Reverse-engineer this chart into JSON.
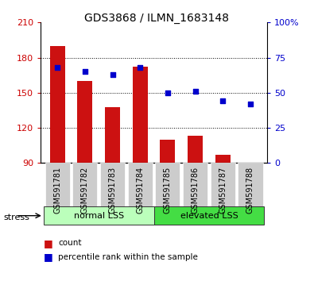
{
  "title": "GDS3868 / ILMN_1683148",
  "samples": [
    "GSM591781",
    "GSM591782",
    "GSM591783",
    "GSM591784",
    "GSM591785",
    "GSM591786",
    "GSM591787",
    "GSM591788"
  ],
  "bar_values": [
    190,
    160,
    138,
    172,
    110,
    113,
    97,
    90
  ],
  "bar_bottom": 90,
  "percentile_values": [
    68,
    65,
    63,
    68,
    50,
    51,
    44,
    42
  ],
  "groups": [
    {
      "label": "normal LSS",
      "start": 0,
      "end": 4,
      "color": "#bbffbb"
    },
    {
      "label": "elevated LSS",
      "start": 4,
      "end": 8,
      "color": "#44dd44"
    }
  ],
  "bar_color": "#cc1111",
  "dot_color": "#0000cc",
  "left_ylim": [
    90,
    210
  ],
  "left_yticks": [
    90,
    120,
    150,
    180,
    210
  ],
  "right_ylim": [
    0,
    100
  ],
  "right_yticks": [
    0,
    25,
    50,
    75,
    100
  ],
  "right_yticklabels": [
    "0",
    "25",
    "50",
    "75",
    "100%"
  ],
  "grid_values": [
    120,
    150,
    180
  ],
  "stress_label": "stress",
  "legend_count_label": "count",
  "legend_pct_label": "percentile rank within the sample",
  "bar_width": 0.55,
  "left_tick_color": "#cc0000",
  "right_tick_color": "#0000cc",
  "tick_label_size": 7,
  "title_size": 10,
  "xtick_bg": "#cccccc"
}
